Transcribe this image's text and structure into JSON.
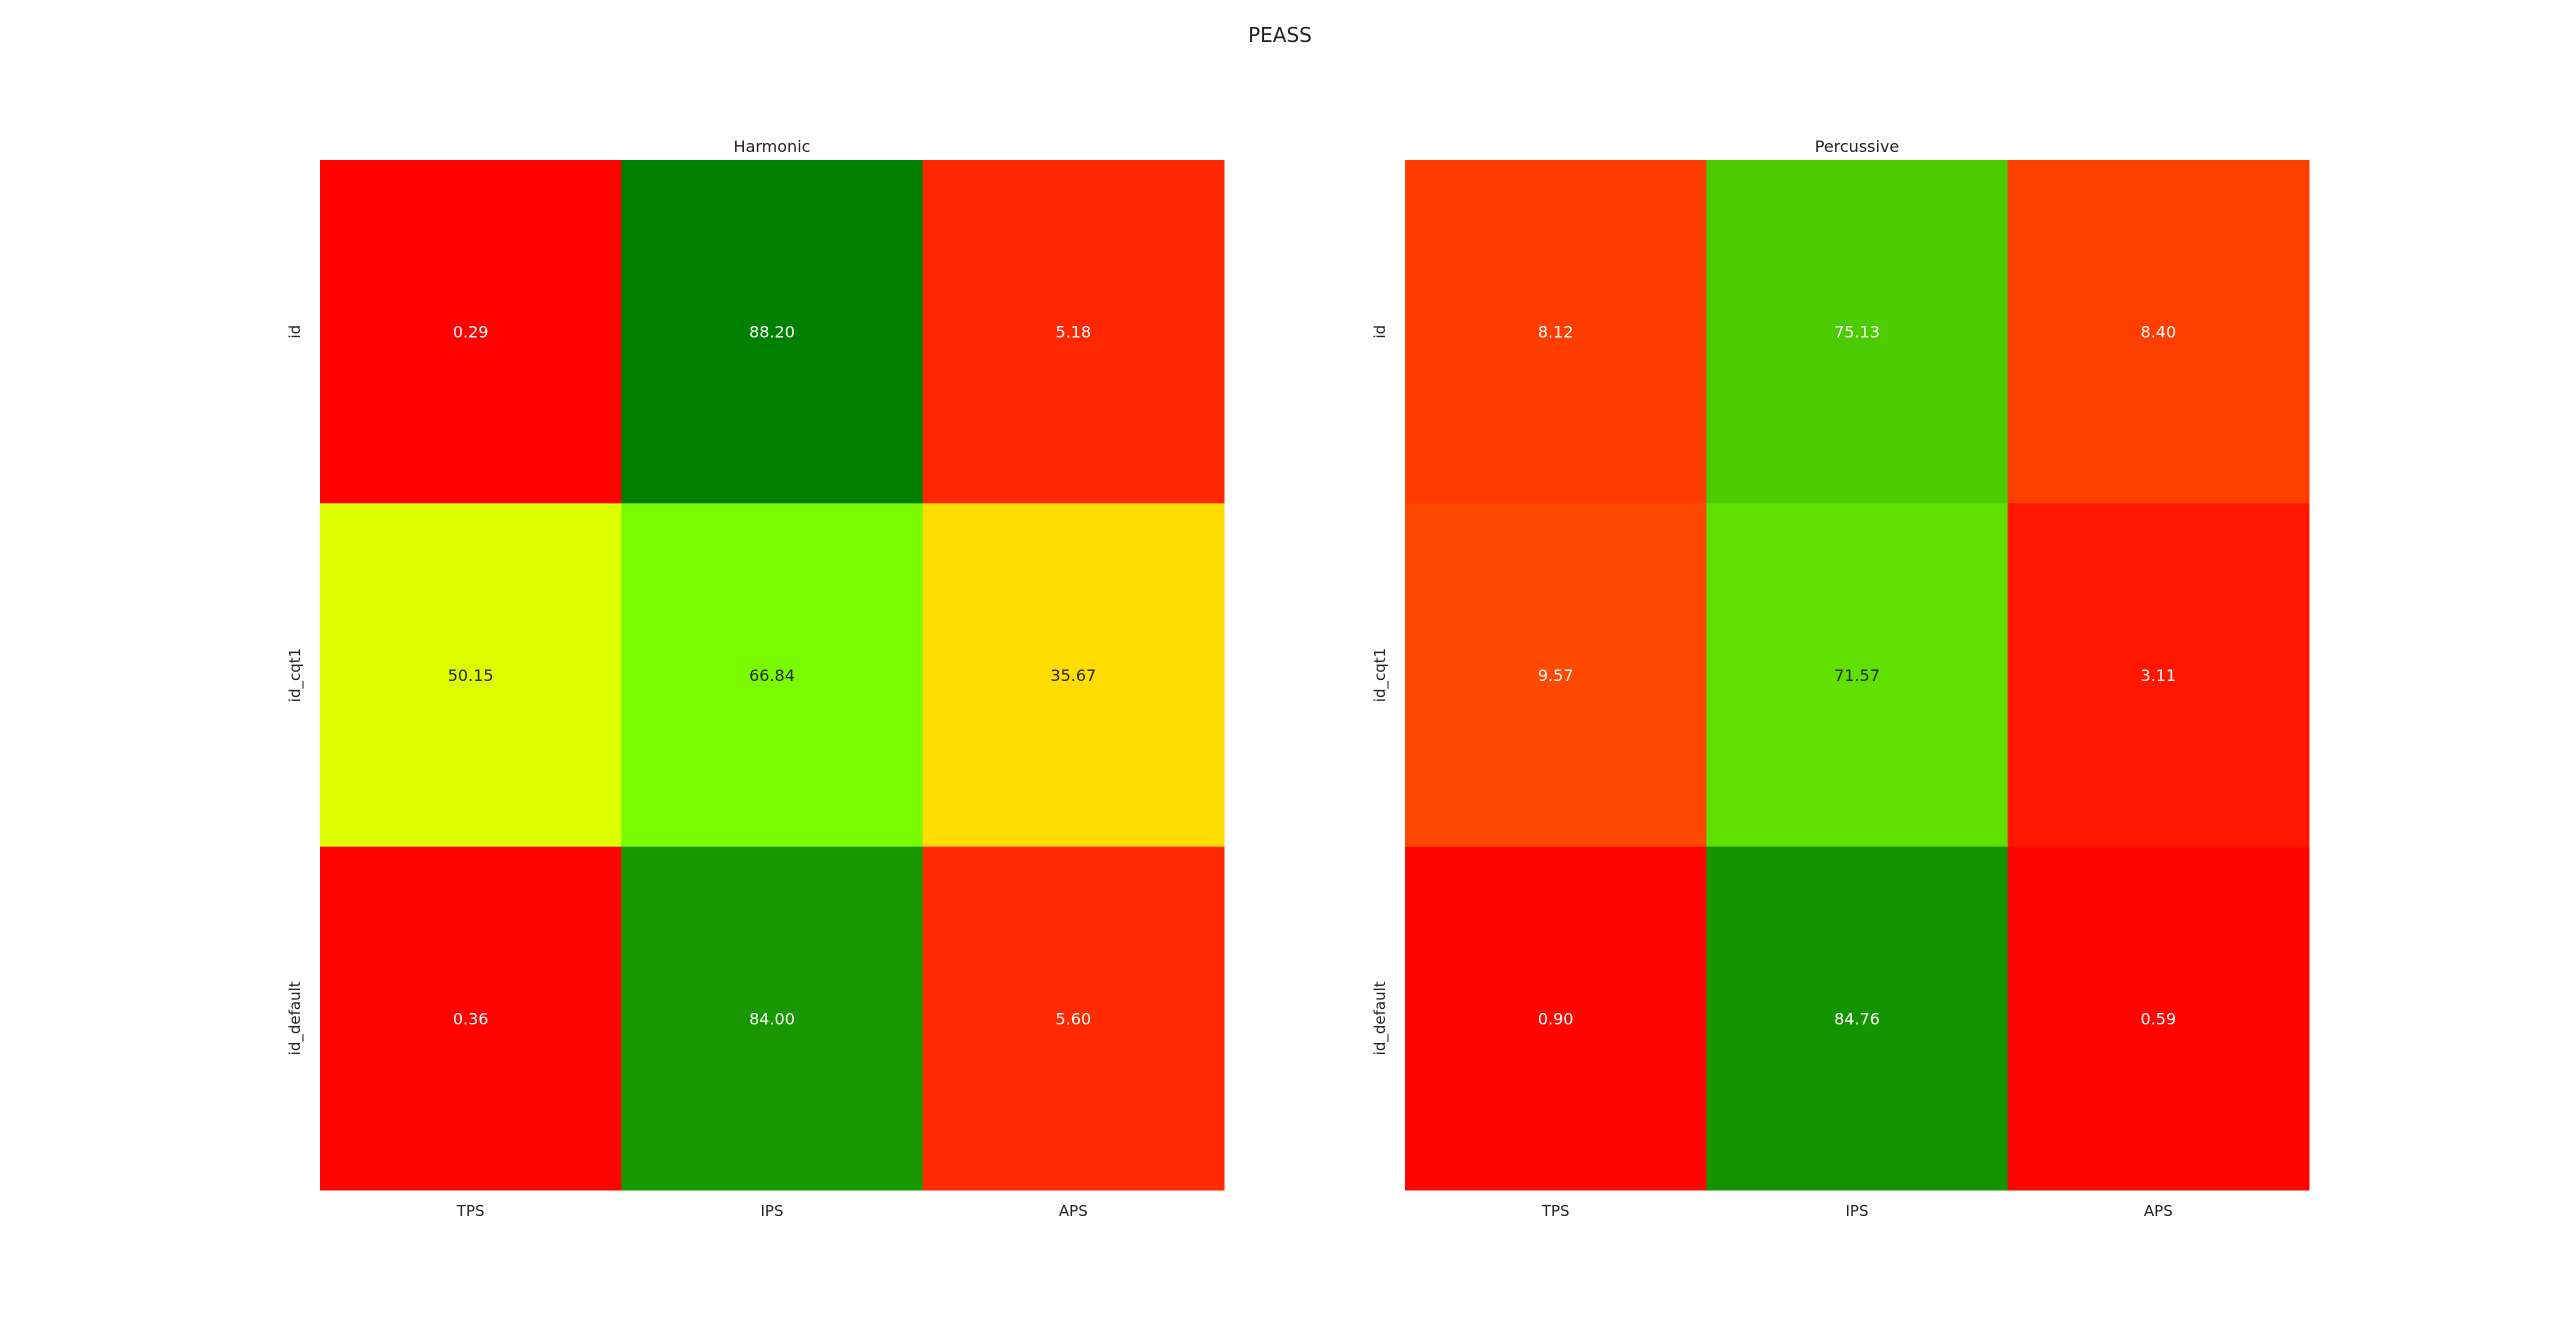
{
  "chart_data": {
    "title": "PEASS",
    "colormap": [
      "#ff0000",
      "#ffa500",
      "#ffff00",
      "#7fff00",
      "#008000"
    ],
    "vmin": 0,
    "vmax": 88.2,
    "panels": [
      {
        "type": "heatmap",
        "title": "Harmonic",
        "columns": [
          "TPS",
          "IPS",
          "APS"
        ],
        "rows": [
          "id",
          "id_cqt1",
          "id_default"
        ],
        "values": [
          [
            0.29,
            88.2,
            5.18
          ],
          [
            50.15,
            66.84,
            35.67
          ],
          [
            0.36,
            84.0,
            5.6
          ]
        ],
        "labels": [
          [
            "0.29",
            "88.20",
            "5.18"
          ],
          [
            "50.15",
            "66.84",
            "35.67"
          ],
          [
            "0.36",
            "84.00",
            "5.60"
          ]
        ]
      },
      {
        "type": "heatmap",
        "title": "Percussive",
        "columns": [
          "TPS",
          "IPS",
          "APS"
        ],
        "rows": [
          "id",
          "id_cqt1",
          "id_default"
        ],
        "values": [
          [
            8.12,
            75.13,
            8.4
          ],
          [
            9.57,
            71.57,
            3.11
          ],
          [
            0.9,
            84.76,
            0.59
          ]
        ],
        "labels": [
          [
            "8.12",
            "75.13",
            "8.40"
          ],
          [
            "9.57",
            "71.57",
            "3.11"
          ],
          [
            "0.90",
            "84.76",
            "0.59"
          ]
        ]
      }
    ]
  }
}
